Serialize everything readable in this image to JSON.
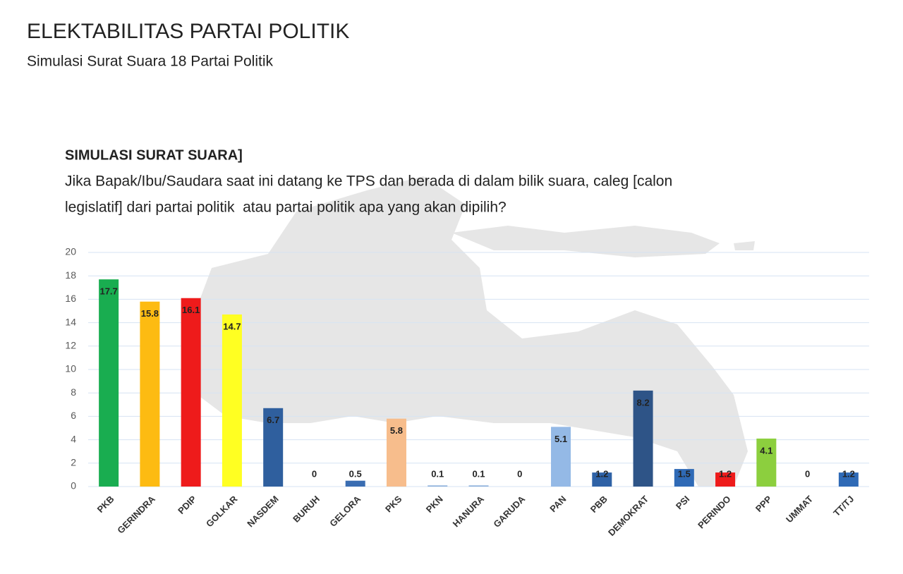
{
  "chart_data": {
    "type": "bar",
    "title": "ELEKTABILITAS PARTAI POLITIK",
    "subtitle": "Simulasi Surat Suara 18 Partai Politik",
    "header": "SIMULASI SURAT SUARA]",
    "question": [
      "Jika Bapak/Ibu/Saudara saat ini datang ke TPS dan berada di dalam bilik suara, caleg [calon",
      "legislatif] dari partai politik  atau partai politik apa yang akan dipilih?"
    ],
    "categories": [
      "PKB",
      "GERINDRA",
      "PDIP",
      "GOLKAR",
      "NASDEM",
      "BURUH",
      "GELORA",
      "PKS",
      "PKN",
      "HANURA",
      "GARUDA",
      "PAN",
      "PBB",
      "DEMOKRAT",
      "PSI",
      "PERINDO",
      "PPP",
      "UMMAT",
      "TT/TJ"
    ],
    "values": [
      17.7,
      15.8,
      16.1,
      14.7,
      6.7,
      0,
      0.5,
      5.8,
      0.1,
      0.1,
      0,
      5.1,
      1.2,
      8.2,
      1.5,
      1.2,
      4.1,
      0,
      1.2
    ],
    "colors": [
      "#19ad50",
      "#fdbb12",
      "#ee1b1b",
      "#ffff22",
      "#2f5f9e",
      "#2f5f9e",
      "#3a6db2",
      "#f7bd8c",
      "#8fb1dd",
      "#8fb1dd",
      "#8fb1dd",
      "#94b9e6",
      "#2f62a6",
      "#2e5487",
      "#2f6ab6",
      "#ee1b1b",
      "#8ccf3e",
      "#2f6ab6",
      "#2f6ab6"
    ],
    "ylim": [
      0,
      20
    ],
    "yticks": [
      0,
      2,
      4,
      6,
      8,
      10,
      12,
      14,
      16,
      18,
      20
    ],
    "grid": true
  }
}
